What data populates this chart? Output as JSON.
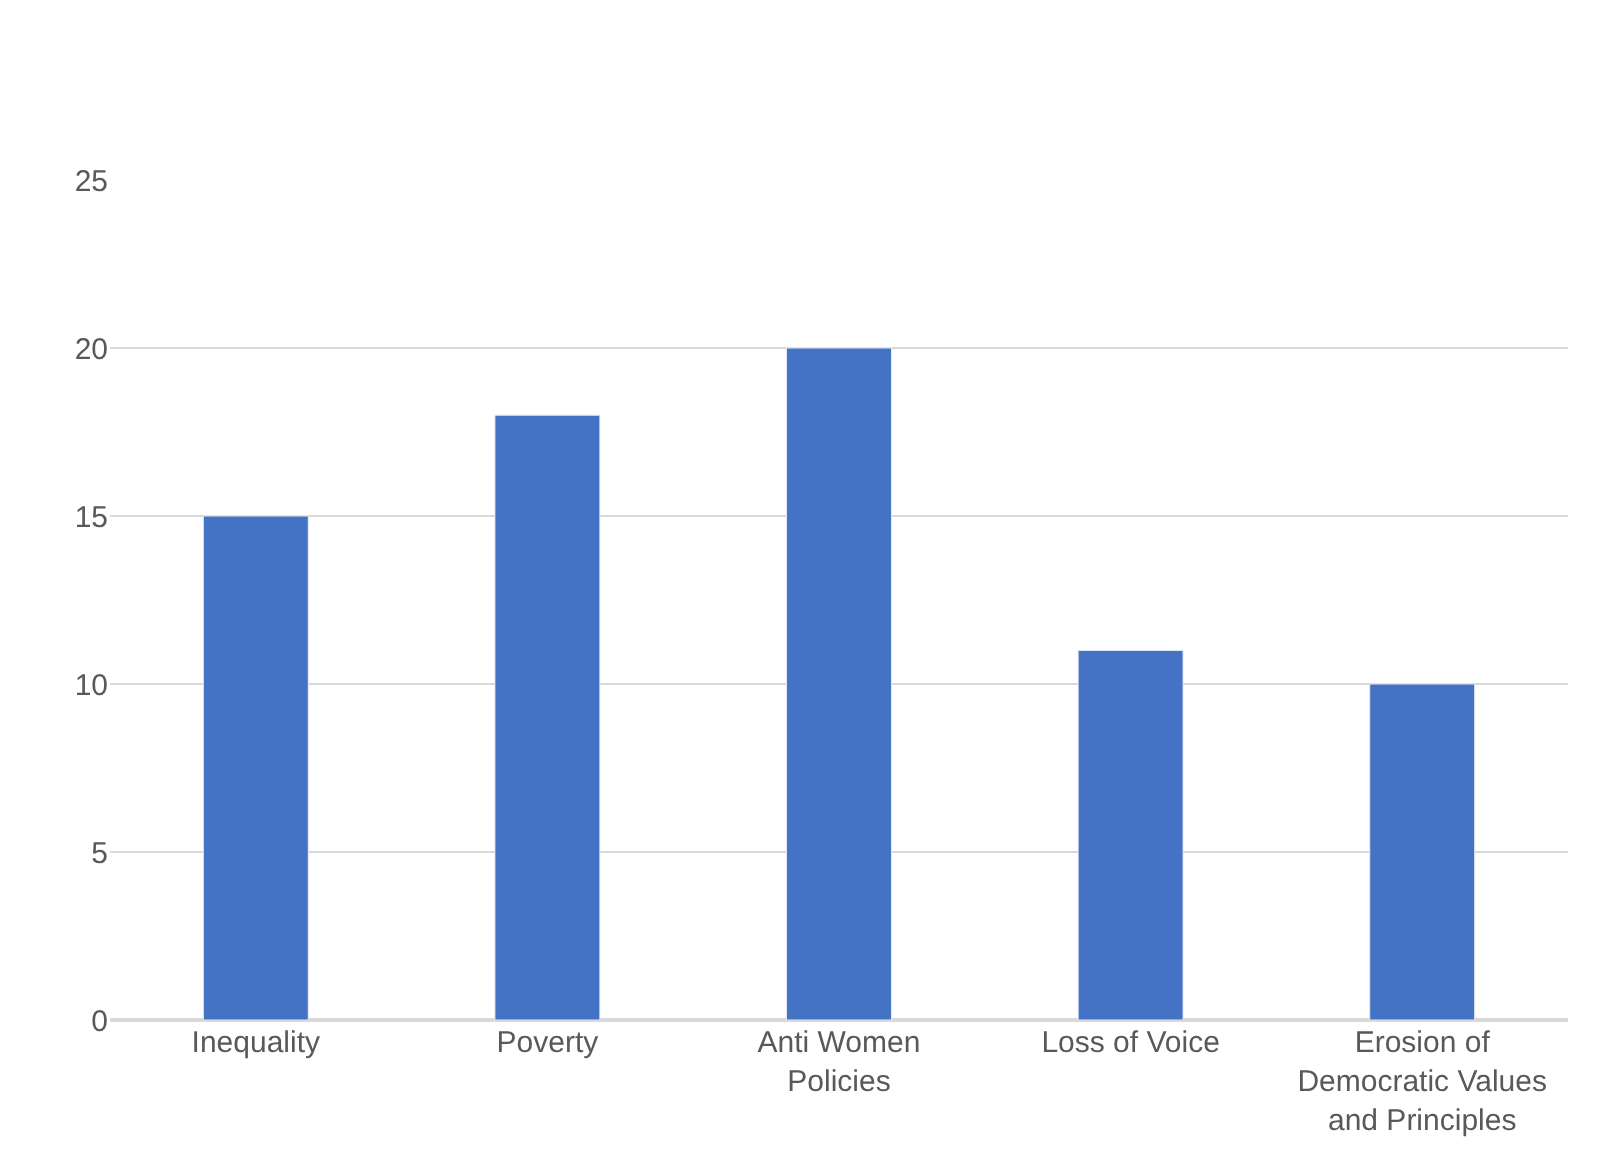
{
  "chart_data": {
    "type": "bar",
    "categories": [
      "Inequality",
      "Poverty",
      "Anti Women Policies",
      "Loss of Voice",
      "Erosion of Democratic Values and Principles"
    ],
    "values": [
      15,
      18,
      20,
      11,
      10
    ],
    "color": "#4472c4",
    "ylim": [
      0,
      25
    ],
    "yticks": [
      0,
      5,
      10,
      15,
      20,
      25
    ],
    "grid": "y"
  }
}
